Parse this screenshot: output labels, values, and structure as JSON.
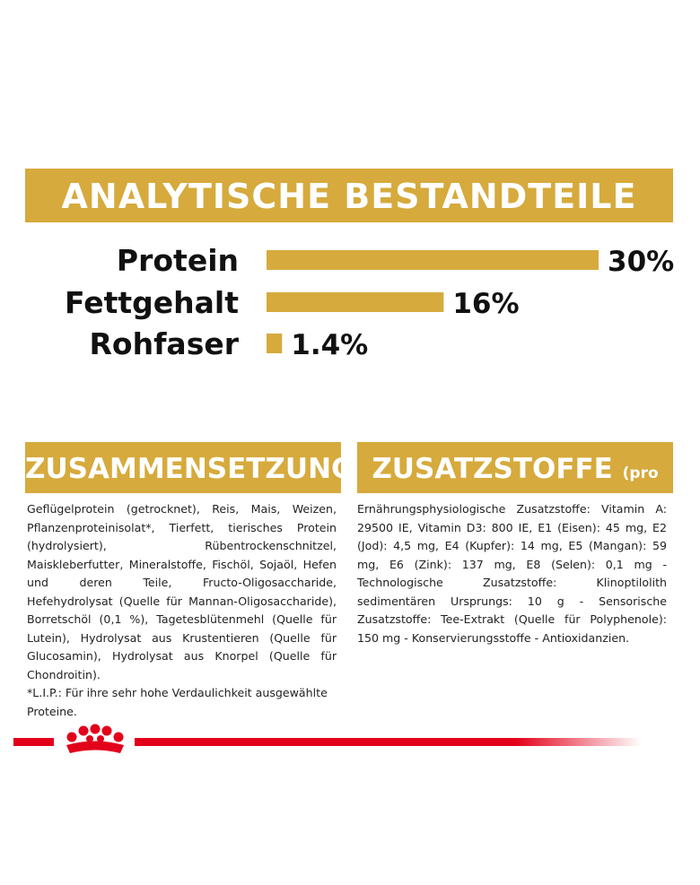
{
  "header": {
    "title": "ANALYTISCHE BESTANDTEILE"
  },
  "analysis": {
    "items": [
      {
        "label": "Protein",
        "value": 30,
        "value_label": "30%"
      },
      {
        "label": "Fettgehalt",
        "value": 16,
        "value_label": "16%"
      },
      {
        "label": "Rohfaser",
        "value": 1.4,
        "value_label": "1.4%"
      }
    ]
  },
  "composition": {
    "title": "ZUSAMMENSETZUNG",
    "text": "Geflügelprotein (getrocknet), Reis, Mais, Weizen, Pflanzenproteinisolat*, Tierfett, tierisches Protein (hydrolysiert), Rübentrockenschnitzel, Maiskleberfutter, Mineralstoffe, Fischöl, Sojaöl, Hefen und deren Teile, Fructo-Oligosaccharide, Hefehydrolysat (Quelle für Mannan-Oligosaccharide), Borretschöl (0,1 %), Tagetesblütenmehl (Quelle für Lutein), Hydrolysat aus Krustentieren (Quelle für Glucosamin), Hydrolysat aus Knorpel (Quelle für Chondroitin).",
    "note": "*L.I.P.: Für ihre sehr hohe Verdaulichkeit ausgewählte Proteine."
  },
  "additives": {
    "title": "ZUSATZSTOFFE",
    "subtitle": "(pro kg)",
    "text": "Ernährungsphysiologische Zusatzstoffe: Vitamin A: 29500 IE, Vitamin D3: 800 IE, E1 (Eisen): 45 mg, E2 (Jod): 4,5 mg, E4 (Kupfer): 14 mg, E5 (Mangan): 59 mg, E6 (Zink): 137 mg, E8 (Selen): 0,1 mg - Technologische Zusatzstoffe: Klinoptilolith sedimentären Ursprungs: 10 g - Sensorische Zusatzstoffe: Tee-Extrakt (Quelle für Polyphenole): 150 mg - Konservierungsstoffe - Antioxidanzien."
  }
}
